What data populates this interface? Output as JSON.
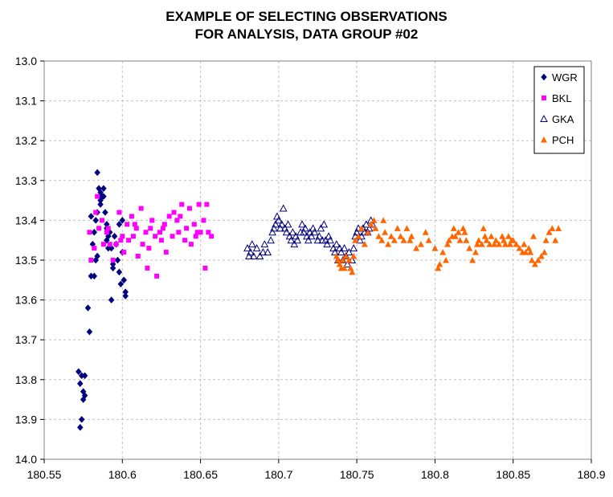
{
  "chart_data": {
    "type": "scatter",
    "title": [
      "EXAMPLE OF SELECTING OBSERVATIONS",
      "FOR ANALYSIS, DATA GROUP #02"
    ],
    "xlim": [
      180.55,
      180.9
    ],
    "ylim": [
      13.0,
      14.0
    ],
    "y_reversed": true,
    "x_ticks": [
      "180.55",
      "180.6",
      "180.65",
      "180.7",
      "180.75",
      "180.8",
      "180.85",
      "180.9"
    ],
    "x_tick_values": [
      180.55,
      180.6,
      180.65,
      180.7,
      180.75,
      180.8,
      180.85,
      180.9
    ],
    "y_ticks": [
      "13.0",
      "13.1",
      "13.2",
      "13.3",
      "13.4",
      "13.5",
      "13.6",
      "13.7",
      "13.8",
      "13.9",
      "14.0"
    ],
    "y_tick_values": [
      13.0,
      13.1,
      13.2,
      13.3,
      13.4,
      13.5,
      13.6,
      13.7,
      13.8,
      13.9,
      14.0
    ],
    "grid": true,
    "legend_position": "top-right",
    "series": [
      {
        "name": "WGR",
        "marker": "diamond",
        "color": "#000080",
        "x": [
          180.572,
          180.573,
          180.573,
          180.574,
          180.574,
          180.575,
          180.575,
          180.576,
          180.576,
          180.578,
          180.579,
          180.58,
          180.58,
          180.581,
          180.582,
          180.582,
          180.583,
          180.583,
          180.584,
          180.584,
          180.585,
          180.586,
          180.586,
          180.587,
          180.588,
          180.588,
          180.589,
          180.59,
          180.59,
          180.591,
          180.591,
          180.592,
          180.593,
          180.593,
          180.594,
          180.595,
          180.596,
          180.597,
          180.598,
          180.599,
          180.6,
          180.6,
          180.601,
          180.602,
          180.602,
          180.586,
          180.584,
          180.59,
          180.594,
          180.598
        ],
        "y": [
          13.78,
          13.81,
          13.92,
          13.9,
          13.79,
          13.83,
          13.85,
          13.79,
          13.84,
          13.62,
          13.68,
          13.54,
          13.39,
          13.46,
          13.43,
          13.54,
          13.4,
          13.5,
          13.49,
          13.28,
          13.32,
          13.33,
          13.36,
          13.34,
          13.32,
          13.34,
          13.38,
          13.41,
          13.42,
          13.44,
          13.47,
          13.43,
          13.47,
          13.6,
          13.51,
          13.44,
          13.46,
          13.5,
          13.53,
          13.56,
          13.48,
          13.4,
          13.55,
          13.58,
          13.59,
          13.35,
          13.38,
          13.45,
          13.52,
          13.41
        ]
      },
      {
        "name": "BKL",
        "marker": "square",
        "color": "#FF00FF",
        "x": [
          180.579,
          180.58,
          180.582,
          180.584,
          180.585,
          180.587,
          180.588,
          180.59,
          180.592,
          180.594,
          180.596,
          180.598,
          180.6,
          180.601,
          180.603,
          180.604,
          180.606,
          180.607,
          180.609,
          180.61,
          180.612,
          180.613,
          180.615,
          180.616,
          180.618,
          180.619,
          180.621,
          180.622,
          180.624,
          180.625,
          180.627,
          180.628,
          180.63,
          180.632,
          180.633,
          180.635,
          180.636,
          180.638,
          180.64,
          180.641,
          180.643,
          180.644,
          180.646,
          180.647,
          180.649,
          180.65,
          180.652,
          180.653,
          180.655,
          180.657,
          180.583,
          180.591,
          180.599,
          180.608,
          180.617,
          180.626,
          180.637,
          180.648,
          180.654
        ],
        "y": [
          13.43,
          13.5,
          13.47,
          13.34,
          13.42,
          13.4,
          13.46,
          13.43,
          13.46,
          13.5,
          13.46,
          13.38,
          13.44,
          13.48,
          13.41,
          13.45,
          13.39,
          13.44,
          13.42,
          13.49,
          13.37,
          13.46,
          13.43,
          13.52,
          13.42,
          13.4,
          13.44,
          13.54,
          13.43,
          13.45,
          13.41,
          13.48,
          13.39,
          13.44,
          13.38,
          13.4,
          13.43,
          13.36,
          13.45,
          13.42,
          13.37,
          13.46,
          13.41,
          13.44,
          13.36,
          13.43,
          13.4,
          13.52,
          13.43,
          13.44,
          13.38,
          13.42,
          13.45,
          13.41,
          13.47,
          13.42,
          13.39,
          13.43,
          13.36
        ]
      },
      {
        "name": "GKA",
        "marker": "triangle-open",
        "color": "#000080",
        "x": [
          180.68,
          180.681,
          180.682,
          180.683,
          180.684,
          180.686,
          180.688,
          180.69,
          180.691,
          180.693,
          180.695,
          180.696,
          180.697,
          180.698,
          180.699,
          180.7,
          180.701,
          180.702,
          180.703,
          180.704,
          180.705,
          180.706,
          180.707,
          180.708,
          180.709,
          180.71,
          180.711,
          180.712,
          180.714,
          180.715,
          180.716,
          180.717,
          180.718,
          180.719,
          180.72,
          180.721,
          180.722,
          180.723,
          180.725,
          180.726,
          180.727,
          180.728,
          180.729,
          180.73,
          180.731,
          180.732,
          180.733,
          180.735,
          180.736,
          180.737,
          180.738,
          180.739,
          180.74,
          180.741,
          180.742,
          180.743,
          180.744,
          180.745,
          180.747,
          180.748,
          180.749,
          180.75,
          180.751,
          180.752,
          180.753,
          180.754,
          180.755,
          180.756,
          180.757,
          180.758,
          180.759,
          180.76
        ],
        "y": [
          13.47,
          13.49,
          13.48,
          13.46,
          13.49,
          13.47,
          13.49,
          13.48,
          13.46,
          13.48,
          13.45,
          13.43,
          13.42,
          13.41,
          13.39,
          13.4,
          13.42,
          13.41,
          13.37,
          13.42,
          13.43,
          13.41,
          13.44,
          13.45,
          13.43,
          13.46,
          13.44,
          13.45,
          13.43,
          13.41,
          13.43,
          13.42,
          13.44,
          13.45,
          13.43,
          13.44,
          13.42,
          13.43,
          13.45,
          13.44,
          13.42,
          13.45,
          13.41,
          13.45,
          13.46,
          13.44,
          13.45,
          13.47,
          13.48,
          13.46,
          13.5,
          13.47,
          13.48,
          13.5,
          13.47,
          13.49,
          13.51,
          13.48,
          13.5,
          13.47,
          13.44,
          13.43,
          13.42,
          13.45,
          13.44,
          13.42,
          13.43,
          13.41,
          13.43,
          13.42,
          13.4,
          13.41
        ]
      },
      {
        "name": "PCH",
        "marker": "triangle",
        "color": "#FF6600",
        "x": [
          180.737,
          180.738,
          180.739,
          180.74,
          180.741,
          180.742,
          180.743,
          180.745,
          180.746,
          180.747,
          180.748,
          180.749,
          180.751,
          180.753,
          180.755,
          180.757,
          180.759,
          180.761,
          180.762,
          180.764,
          180.766,
          180.768,
          180.77,
          180.772,
          180.774,
          180.776,
          180.778,
          180.78,
          180.782,
          180.784,
          180.788,
          180.791,
          180.794,
          180.796,
          180.8,
          180.802,
          180.803,
          180.805,
          180.807,
          180.809,
          180.811,
          180.812,
          180.813,
          180.815,
          180.816,
          180.818,
          180.819,
          180.82,
          180.822,
          180.824,
          180.826,
          180.827,
          180.828,
          180.83,
          180.832,
          180.833,
          180.835,
          180.836,
          180.838,
          180.839,
          180.841,
          180.843,
          180.844,
          180.845,
          180.847,
          180.848,
          180.85,
          180.852,
          180.854,
          180.856,
          180.857,
          180.858,
          180.86,
          180.861,
          180.862,
          180.864,
          180.866,
          180.868,
          180.87,
          180.871,
          180.873,
          180.875,
          180.877,
          180.879,
          180.767,
          180.785,
          180.808,
          180.831,
          180.849,
          180.863
        ],
        "y": [
          13.49,
          13.5,
          13.51,
          13.52,
          13.5,
          13.52,
          13.49,
          13.5,
          13.52,
          13.53,
          13.49,
          13.45,
          13.44,
          13.42,
          13.46,
          13.43,
          13.41,
          13.4,
          13.42,
          13.44,
          13.45,
          13.43,
          13.46,
          13.44,
          13.45,
          13.42,
          13.44,
          13.45,
          13.42,
          13.45,
          13.47,
          13.46,
          13.43,
          13.45,
          13.47,
          13.52,
          13.51,
          13.48,
          13.5,
          13.45,
          13.44,
          13.42,
          13.44,
          13.43,
          13.45,
          13.42,
          13.43,
          13.45,
          13.47,
          13.5,
          13.48,
          13.46,
          13.45,
          13.46,
          13.44,
          13.45,
          13.46,
          13.44,
          13.46,
          13.45,
          13.46,
          13.44,
          13.45,
          13.46,
          13.44,
          13.46,
          13.45,
          13.46,
          13.47,
          13.48,
          13.46,
          13.48,
          13.47,
          13.48,
          13.5,
          13.51,
          13.5,
          13.49,
          13.48,
          13.45,
          13.43,
          13.42,
          13.45,
          13.42,
          13.4,
          13.44,
          13.46,
          13.42,
          13.45,
          13.44
        ]
      }
    ]
  },
  "page": {
    "background": "#FFFFFF",
    "plot_border": "#808080",
    "grid_color": "#C0C0C0"
  }
}
